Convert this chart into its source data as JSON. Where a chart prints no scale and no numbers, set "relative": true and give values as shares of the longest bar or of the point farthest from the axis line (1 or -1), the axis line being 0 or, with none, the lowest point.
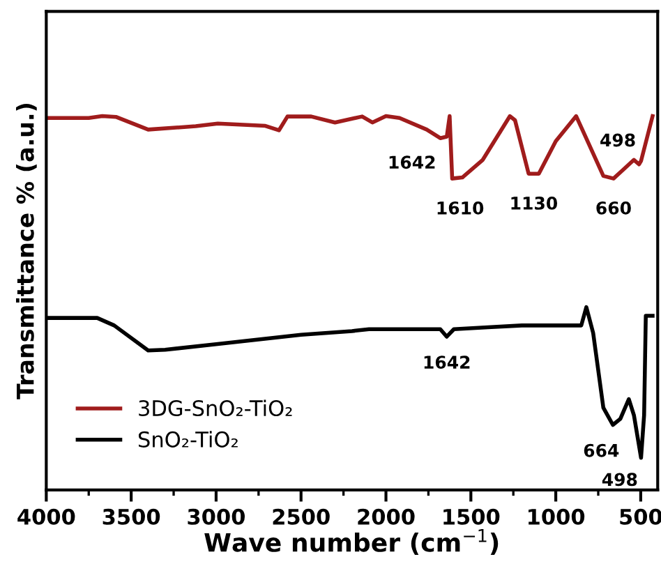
{
  "chart_data": {
    "type": "line",
    "relative": true,
    "xlabel": "Wave number (cm$^{−1}$)",
    "ylabel": "Transmittance % (a.u.)",
    "xlim": [
      4000,
      400
    ],
    "xticks": [
      4000,
      3500,
      3000,
      2500,
      2000,
      1500,
      1000,
      500
    ],
    "legend": "bottom left",
    "grid": false,
    "tick_labels": "x",
    "series": [
      {
        "name": "3DG-SnO₂-TiO₂",
        "color": "#a01c1c",
        "x": [
          4000,
          3750,
          3670,
          3590,
          3400,
          3120,
          2990,
          2710,
          2630,
          2580,
          2440,
          2300,
          2140,
          2080,
          2000,
          1920,
          1760,
          1680,
          1642,
          1625,
          1610,
          1550,
          1430,
          1270,
          1240,
          1160,
          1100,
          1000,
          880,
          850,
          720,
          660,
          600,
          540,
          510,
          498,
          430
        ],
        "values": [
          0.995,
          0.995,
          1.0,
          0.998,
          0.964,
          0.973,
          0.98,
          0.974,
          0.962,
          0.999,
          0.999,
          0.983,
          0.999,
          0.983,
          1.0,
          0.995,
          0.964,
          0.941,
          0.945,
          1.0,
          0.833,
          0.836,
          0.883,
          1.0,
          0.989,
          0.846,
          0.846,
          0.933,
          1.0,
          0.97,
          0.84,
          0.833,
          0.858,
          0.883,
          0.871,
          0.88,
          1.0
        ]
      },
      {
        "name": "SnO₂-TiO₂",
        "color": "#000000",
        "x": [
          4000,
          3700,
          3600,
          3400,
          3300,
          3000,
          2500,
          2200,
          2100,
          1800,
          1680,
          1642,
          1600,
          1400,
          1200,
          850,
          820,
          780,
          720,
          664,
          620,
          570,
          540,
          498,
          480,
          470,
          430
        ],
        "values": [
          0.46,
          0.46,
          0.44,
          0.373,
          0.375,
          0.39,
          0.415,
          0.425,
          0.43,
          0.43,
          0.43,
          0.41,
          0.43,
          0.435,
          0.44,
          0.44,
          0.489,
          0.42,
          0.22,
          0.174,
          0.19,
          0.243,
          0.2,
          0.086,
          0.2,
          0.466,
          0.466
        ]
      }
    ],
    "annotations": [
      {
        "text": "1642",
        "x": 1642,
        "y": 0.945
      },
      {
        "text": "1610",
        "x": 1610,
        "y": 0.833
      },
      {
        "text": "1130",
        "x": 1130,
        "y": 0.846
      },
      {
        "text": "660",
        "x": 660,
        "y": 0.833
      },
      {
        "text": "498",
        "x": 498,
        "y": 0.88
      },
      {
        "text": "1642",
        "x": 1642,
        "y": 0.41
      },
      {
        "text": "664",
        "x": 664,
        "y": 0.174
      },
      {
        "text": "498",
        "x": 498,
        "y": 0.086
      }
    ]
  }
}
